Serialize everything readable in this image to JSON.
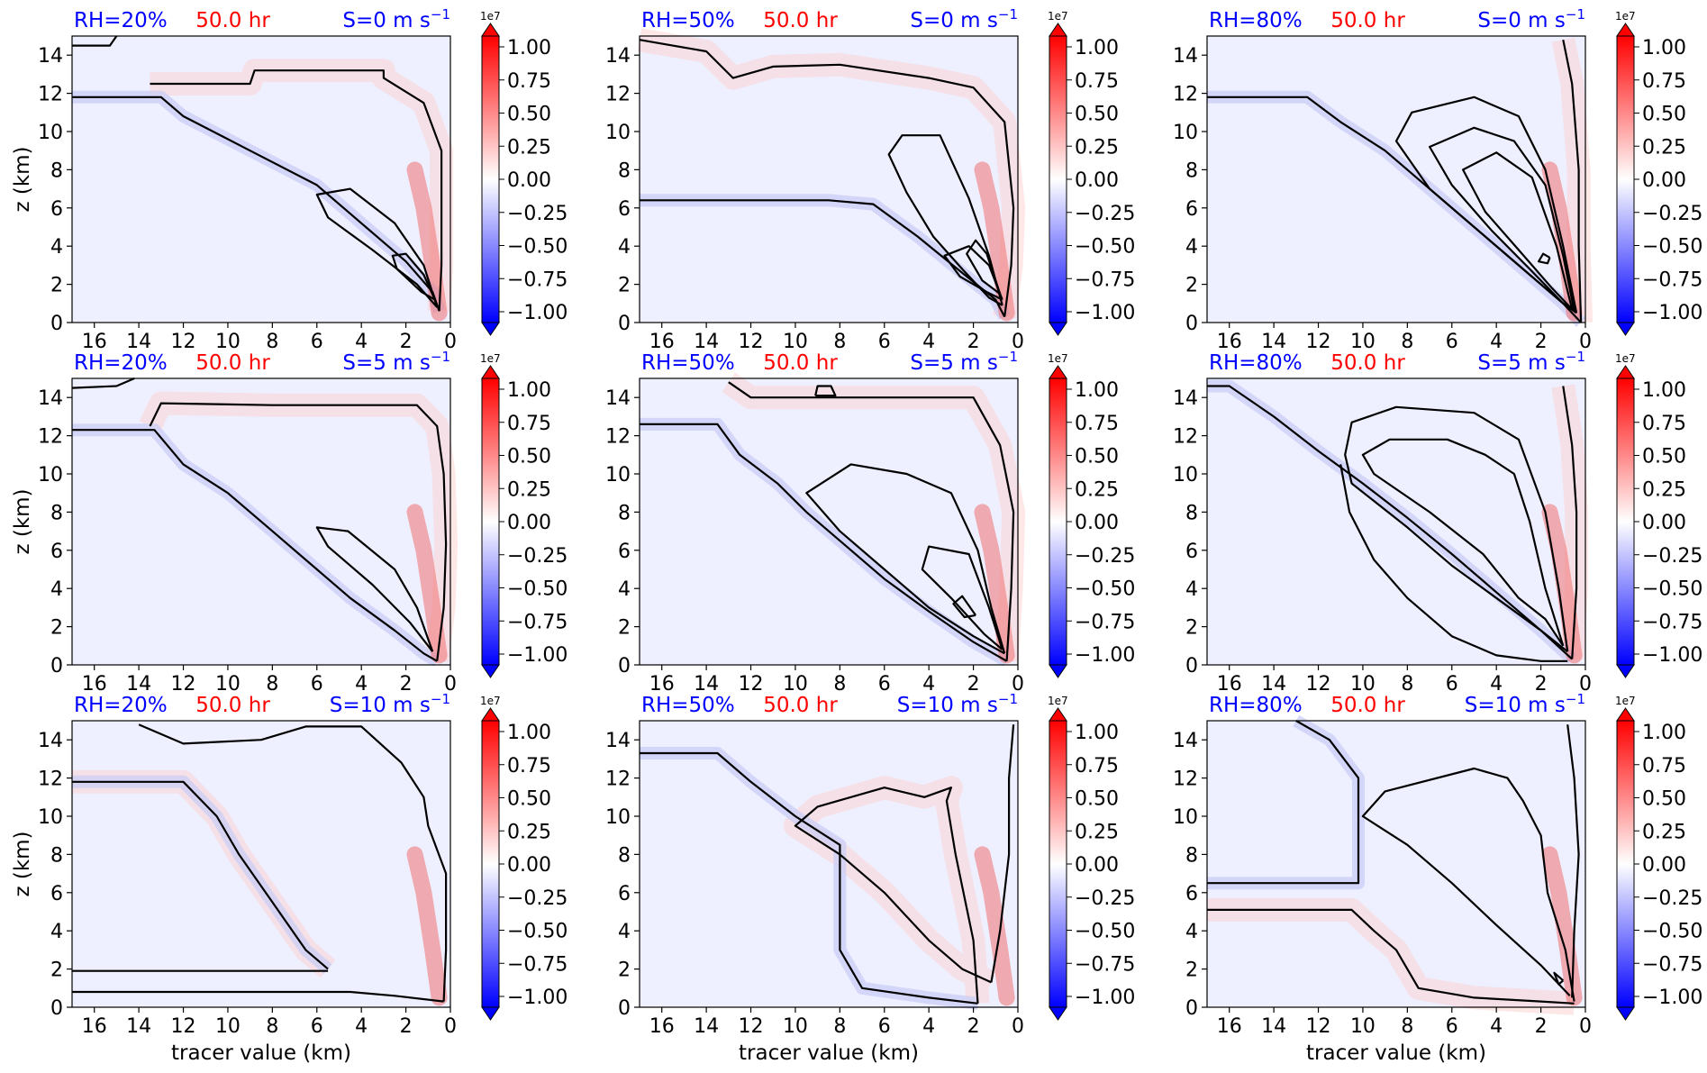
{
  "figure": {
    "x_label": "tracer value (km)",
    "y_label": "z (km)",
    "x_ticks": [
      "16",
      "14",
      "12",
      "10",
      "8",
      "6",
      "4",
      "2",
      "0"
    ],
    "y_ticks": [
      "0",
      "2",
      "4",
      "6",
      "8",
      "10",
      "12",
      "14"
    ],
    "colorbar": {
      "multiplier": "1e7",
      "ticks": [
        "1.00",
        "0.75",
        "0.50",
        "0.25",
        "0.00",
        "−0.25",
        "−0.50",
        "−0.75",
        "−1.00"
      ],
      "colors": {
        "max": "#ff0000",
        "zero": "#ffffff",
        "min": "#0000ff"
      }
    },
    "colors": {
      "rh_label": "#0000ff",
      "time_label": "#ff0000",
      "shear_label": "#0000ff",
      "contour": "#000000",
      "frame": "#000000",
      "background_field": "#eef0ff"
    }
  },
  "chart_data": [
    {
      "type": "heatmap",
      "title_rh": "RH=20%",
      "title_time": "50.0 hr",
      "title_shear": "S=0 m s",
      "shear_exp": "−1",
      "xlim": [
        17,
        0
      ],
      "ylim": [
        0,
        15
      ]
    },
    {
      "type": "heatmap",
      "title_rh": "RH=50%",
      "title_time": "50.0 hr",
      "title_shear": "S=0 m s",
      "shear_exp": "−1",
      "xlim": [
        17,
        0
      ],
      "ylim": [
        0,
        15
      ]
    },
    {
      "type": "heatmap",
      "title_rh": "RH=80%",
      "title_time": "50.0 hr",
      "title_shear": "S=0 m s",
      "shear_exp": "−1",
      "xlim": [
        17,
        0
      ],
      "ylim": [
        0,
        15
      ]
    },
    {
      "type": "heatmap",
      "title_rh": "RH=20%",
      "title_time": "50.0 hr",
      "title_shear": "S=5 m s",
      "shear_exp": "−1",
      "xlim": [
        17,
        0
      ],
      "ylim": [
        0,
        15
      ]
    },
    {
      "type": "heatmap",
      "title_rh": "RH=50%",
      "title_time": "50.0 hr",
      "title_shear": "S=5 m s",
      "shear_exp": "−1",
      "xlim": [
        17,
        0
      ],
      "ylim": [
        0,
        15
      ]
    },
    {
      "type": "heatmap",
      "title_rh": "RH=80%",
      "title_time": "50.0 hr",
      "title_shear": "S=5 m s",
      "shear_exp": "−1",
      "xlim": [
        17,
        0
      ],
      "ylim": [
        0,
        15
      ]
    },
    {
      "type": "heatmap",
      "title_rh": "RH=20%",
      "title_time": "50.0 hr",
      "title_shear": "S=10 m s",
      "shear_exp": "−1",
      "xlim": [
        17,
        0
      ],
      "ylim": [
        0,
        15
      ]
    },
    {
      "type": "heatmap",
      "title_rh": "RH=50%",
      "title_time": "50.0 hr",
      "title_shear": "S=10 m s",
      "shear_exp": "−1",
      "xlim": [
        17,
        0
      ],
      "ylim": [
        0,
        15
      ]
    },
    {
      "type": "heatmap",
      "title_rh": "RH=80%",
      "title_time": "50.0 hr",
      "title_shear": "S=10 m s",
      "shear_exp": "−1",
      "xlim": [
        17,
        0
      ],
      "ylim": [
        0,
        15
      ]
    }
  ]
}
